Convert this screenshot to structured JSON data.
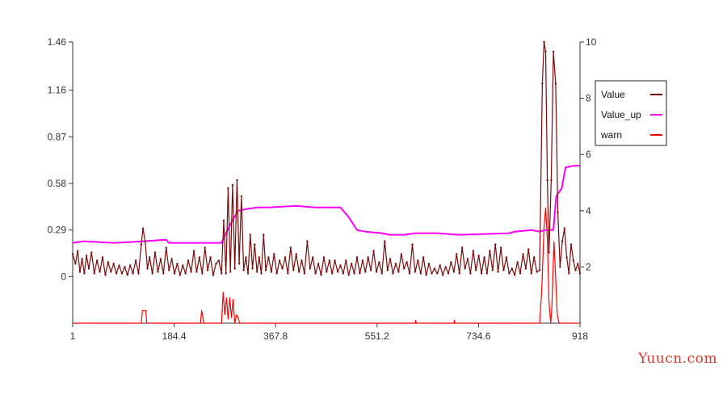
{
  "chart_data": {
    "type": "line",
    "title": "",
    "xlabel": "",
    "ylabel": "",
    "xlim": [
      1,
      918
    ],
    "x_ticks": [
      "1",
      "184.4",
      "367.8",
      "551.2",
      "734.6",
      "918"
    ],
    "y_left_ticks": [
      "0",
      "0.29",
      "0.58",
      "0.87",
      "1.16",
      "1.46"
    ],
    "y_right_ticks": [
      "2",
      "4",
      "6",
      "8",
      "10"
    ],
    "ylim_left": [
      -0.29,
      1.46
    ],
    "ylim_right": [
      0,
      10
    ],
    "legend_position": "right",
    "series": [
      {
        "name": "Value",
        "axis": "left",
        "color": "#7a0a0a",
        "points": [
          [
            1,
            0.14
          ],
          [
            6,
            0.08
          ],
          [
            10,
            0.16
          ],
          [
            14,
            0.03
          ],
          [
            18,
            0.11
          ],
          [
            22,
            0.02
          ],
          [
            26,
            0.13
          ],
          [
            30,
            0.05
          ],
          [
            35,
            0.15
          ],
          [
            40,
            0.02
          ],
          [
            45,
            0.1
          ],
          [
            50,
            0.03
          ],
          [
            55,
            0.12
          ],
          [
            60,
            0.01
          ],
          [
            65,
            0.09
          ],
          [
            70,
            0.03
          ],
          [
            75,
            0.08
          ],
          [
            80,
            0.02
          ],
          [
            85,
            0.07
          ],
          [
            90,
            0.02
          ],
          [
            95,
            0.06
          ],
          [
            100,
            0.01
          ],
          [
            105,
            0.07
          ],
          [
            110,
            0.02
          ],
          [
            115,
            0.1
          ],
          [
            120,
            0.02
          ],
          [
            125,
            0.2
          ],
          [
            128,
            0.3
          ],
          [
            132,
            0.22
          ],
          [
            136,
            0.05
          ],
          [
            140,
            0.12
          ],
          [
            145,
            0.02
          ],
          [
            150,
            0.15
          ],
          [
            155,
            0.03
          ],
          [
            160,
            0.11
          ],
          [
            165,
            0.02
          ],
          [
            170,
            0.18
          ],
          [
            175,
            0.04
          ],
          [
            180,
            0.11
          ],
          [
            185,
            0.02
          ],
          [
            190,
            0.08
          ],
          [
            195,
            0.01
          ],
          [
            200,
            0.07
          ],
          [
            205,
            0.02
          ],
          [
            210,
            0.1
          ],
          [
            215,
            0.03
          ],
          [
            220,
            0.16
          ],
          [
            225,
            0.03
          ],
          [
            230,
            0.12
          ],
          [
            235,
            0.02
          ],
          [
            240,
            0.18
          ],
          [
            245,
            0.04
          ],
          [
            250,
            0.12
          ],
          [
            255,
            0.01
          ],
          [
            260,
            0.08
          ],
          [
            265,
            0.1
          ],
          [
            270,
            0.02
          ],
          [
            274,
            0.35
          ],
          [
            278,
            0.02
          ],
          [
            282,
            0.55
          ],
          [
            286,
            0.03
          ],
          [
            290,
            0.57
          ],
          [
            294,
            0.05
          ],
          [
            298,
            0.6
          ],
          [
            302,
            0.08
          ],
          [
            306,
            0.5
          ],
          [
            310,
            0.04
          ],
          [
            314,
            0.12
          ],
          [
            318,
            0.02
          ],
          [
            322,
            0.26
          ],
          [
            326,
            0.05
          ],
          [
            330,
            0.2
          ],
          [
            334,
            0.03
          ],
          [
            338,
            0.12
          ],
          [
            342,
            0.02
          ],
          [
            346,
            0.26
          ],
          [
            350,
            0.04
          ],
          [
            355,
            0.12
          ],
          [
            360,
            0.03
          ],
          [
            365,
            0.14
          ],
          [
            370,
            0.02
          ],
          [
            375,
            0.1
          ],
          [
            380,
            0.05
          ],
          [
            385,
            0.12
          ],
          [
            390,
            0.02
          ],
          [
            395,
            0.18
          ],
          [
            400,
            0.04
          ],
          [
            405,
            0.14
          ],
          [
            410,
            0.03
          ],
          [
            415,
            0.1
          ],
          [
            420,
            0.02
          ],
          [
            425,
            0.22
          ],
          [
            430,
            0.05
          ],
          [
            435,
            0.12
          ],
          [
            440,
            0.02
          ],
          [
            445,
            0.08
          ],
          [
            450,
            0.01
          ],
          [
            455,
            0.12
          ],
          [
            460,
            0.03
          ],
          [
            465,
            0.1
          ],
          [
            470,
            0.02
          ],
          [
            475,
            0.1
          ],
          [
            480,
            0.03
          ],
          [
            485,
            0.07
          ],
          [
            490,
            0.02
          ],
          [
            495,
            0.1
          ],
          [
            500,
            0.01
          ],
          [
            505,
            0.08
          ],
          [
            510,
            0.02
          ],
          [
            515,
            0.12
          ],
          [
            520,
            0.02
          ],
          [
            525,
            0.1
          ],
          [
            530,
            0.03
          ],
          [
            535,
            0.12
          ],
          [
            540,
            0.04
          ],
          [
            545,
            0.16
          ],
          [
            550,
            0.03
          ],
          [
            555,
            0.09
          ],
          [
            560,
            0.02
          ],
          [
            565,
            0.22
          ],
          [
            570,
            0.04
          ],
          [
            575,
            0.11
          ],
          [
            580,
            0.02
          ],
          [
            585,
            0.08
          ],
          [
            590,
            0.03
          ],
          [
            595,
            0.14
          ],
          [
            600,
            0.05
          ],
          [
            605,
            0.09
          ],
          [
            610,
            0.02
          ],
          [
            615,
            0.2
          ],
          [
            620,
            0.03
          ],
          [
            625,
            0.1
          ],
          [
            630,
            0.02
          ],
          [
            635,
            0.12
          ],
          [
            640,
            0.01
          ],
          [
            645,
            0.08
          ],
          [
            650,
            0.02
          ],
          [
            655,
            0.05
          ],
          [
            660,
            0.02
          ],
          [
            665,
            0.07
          ],
          [
            670,
            0.01
          ],
          [
            675,
            0.06
          ],
          [
            680,
            0.02
          ],
          [
            685,
            0.09
          ],
          [
            690,
            0.03
          ],
          [
            695,
            0.14
          ],
          [
            700,
            0.02
          ],
          [
            705,
            0.18
          ],
          [
            710,
            0.05
          ],
          [
            715,
            0.11
          ],
          [
            720,
            0.02
          ],
          [
            725,
            0.16
          ],
          [
            730,
            0.04
          ],
          [
            735,
            0.13
          ],
          [
            740,
            0.02
          ],
          [
            745,
            0.12
          ],
          [
            750,
            0.02
          ],
          [
            755,
            0.16
          ],
          [
            760,
            0.04
          ],
          [
            765,
            0.2
          ],
          [
            770,
            0.03
          ],
          [
            775,
            0.18
          ],
          [
            780,
            0.04
          ],
          [
            785,
            0.12
          ],
          [
            790,
            0.02
          ],
          [
            795,
            0.05
          ],
          [
            800,
            0.01
          ],
          [
            805,
            0.09
          ],
          [
            810,
            0.02
          ],
          [
            815,
            0.14
          ],
          [
            820,
            0.05
          ],
          [
            825,
            0.17
          ],
          [
            830,
            0.02
          ],
          [
            835,
            0.12
          ],
          [
            840,
            0.03
          ],
          [
            845,
            0.04
          ],
          [
            850,
            1.2
          ],
          [
            853,
            1.46
          ],
          [
            856,
            1.4
          ],
          [
            859,
            0.6
          ],
          [
            862,
            0.15
          ],
          [
            866,
            0.6
          ],
          [
            870,
            1.4
          ],
          [
            874,
            1.2
          ],
          [
            878,
            0.4
          ],
          [
            882,
            0.06
          ],
          [
            886,
            0.22
          ],
          [
            890,
            0.3
          ],
          [
            894,
            0.12
          ],
          [
            898,
            0.02
          ],
          [
            902,
            0.2
          ],
          [
            906,
            0.1
          ],
          [
            910,
            0.04
          ],
          [
            914,
            0.08
          ],
          [
            918,
            0.02
          ]
        ]
      },
      {
        "name": "Value_up",
        "axis": "left",
        "color": "#ff00ff",
        "points": [
          [
            1,
            0.21
          ],
          [
            20,
            0.22
          ],
          [
            75,
            0.21
          ],
          [
            130,
            0.22
          ],
          [
            170,
            0.23
          ],
          [
            175,
            0.21
          ],
          [
            240,
            0.21
          ],
          [
            270,
            0.21
          ],
          [
            285,
            0.32
          ],
          [
            300,
            0.41
          ],
          [
            315,
            0.42
          ],
          [
            335,
            0.43
          ],
          [
            355,
            0.43
          ],
          [
            405,
            0.44
          ],
          [
            440,
            0.43
          ],
          [
            485,
            0.43
          ],
          [
            500,
            0.37
          ],
          [
            515,
            0.29
          ],
          [
            530,
            0.28
          ],
          [
            560,
            0.27
          ],
          [
            575,
            0.26
          ],
          [
            600,
            0.26
          ],
          [
            620,
            0.27
          ],
          [
            660,
            0.27
          ],
          [
            700,
            0.26
          ],
          [
            790,
            0.27
          ],
          [
            800,
            0.28
          ],
          [
            830,
            0.29
          ],
          [
            845,
            0.28
          ],
          [
            855,
            0.29
          ],
          [
            870,
            0.29
          ],
          [
            875,
            0.5
          ],
          [
            885,
            0.55
          ],
          [
            892,
            0.68
          ],
          [
            906,
            0.69
          ],
          [
            918,
            0.69
          ]
        ]
      },
      {
        "name": "warn",
        "axis": "right",
        "color": "#ff0000",
        "points": [
          [
            1,
            0
          ],
          [
            125,
            0
          ],
          [
            127,
            0.45
          ],
          [
            133,
            0.45
          ],
          [
            135,
            0
          ],
          [
            232,
            0
          ],
          [
            234,
            0.45
          ],
          [
            236,
            0.25
          ],
          [
            238,
            0
          ],
          [
            270,
            0
          ],
          [
            273,
            1.1
          ],
          [
            276,
            0.3
          ],
          [
            279,
            0.9
          ],
          [
            282,
            0.15
          ],
          [
            285,
            0.9
          ],
          [
            288,
            0.2
          ],
          [
            291,
            0.85
          ],
          [
            294,
            0
          ],
          [
            297,
            0.3
          ],
          [
            300,
            0.2
          ],
          [
            303,
            0
          ],
          [
            620,
            0
          ],
          [
            621,
            0.1
          ],
          [
            622,
            0
          ],
          [
            690,
            0
          ],
          [
            691,
            0.1
          ],
          [
            692,
            0
          ],
          [
            845,
            0
          ],
          [
            849,
            1.2
          ],
          [
            853,
            3.4
          ],
          [
            856,
            4.1
          ],
          [
            859,
            3.0
          ],
          [
            862,
            0.8
          ],
          [
            865,
            0
          ],
          [
            867,
            0.5
          ],
          [
            869,
            1.6
          ],
          [
            871,
            2.9
          ],
          [
            874,
            1.6
          ],
          [
            877,
            0.3
          ],
          [
            880,
            0
          ],
          [
            918,
            0
          ]
        ]
      }
    ]
  },
  "watermark": "Yuucn.com"
}
